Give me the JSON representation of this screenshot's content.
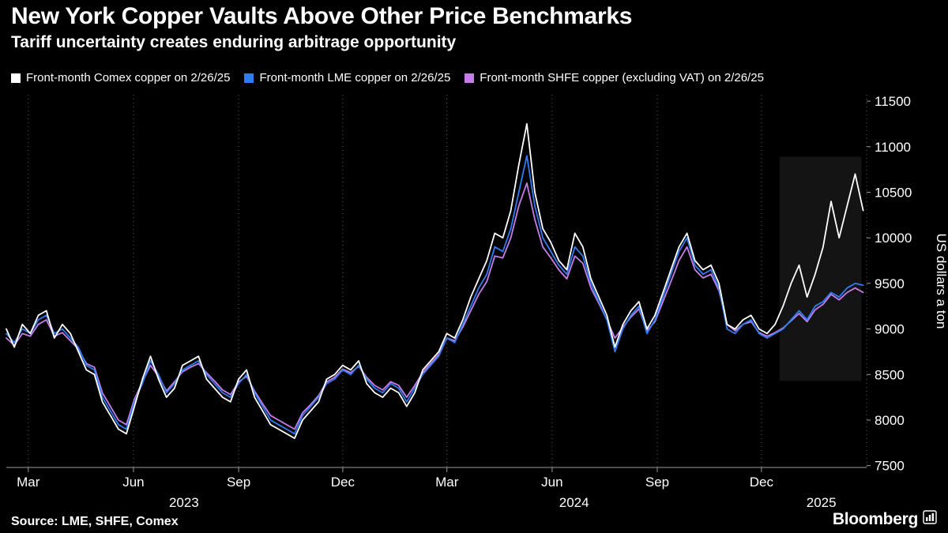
{
  "chart_data": {
    "type": "line",
    "title": "New York Copper Vaults Above Other Price Benchmarks",
    "subtitle": "Tariff uncertainty creates enduring arbitrage opportunity",
    "ylabel": "US dollars a ton",
    "source": "Source: LME, SHFE, Comex",
    "brand": "Bloomberg",
    "x_unit": "months since chart start (Feb 2023)",
    "x_domain": [
      0,
      24.7
    ],
    "y_domain": [
      7480,
      11570
    ],
    "y_ticks": [
      7500,
      8000,
      8500,
      9000,
      9500,
      10000,
      10500,
      11000,
      11500
    ],
    "x_ticks": [
      {
        "pos": 0.63,
        "label": "Mar"
      },
      {
        "pos": 3.65,
        "label": "Jun"
      },
      {
        "pos": 6.67,
        "label": "Sep"
      },
      {
        "pos": 9.66,
        "label": "Dec"
      },
      {
        "pos": 12.65,
        "label": "Mar"
      },
      {
        "pos": 15.67,
        "label": "Jun"
      },
      {
        "pos": 18.69,
        "label": "Sep"
      },
      {
        "pos": 21.68,
        "label": "Dec"
      },
      {
        "pos": 24.7,
        "label": ""
      }
    ],
    "year_labels": [
      {
        "pos": 5.1,
        "label": "2023"
      },
      {
        "pos": 16.3,
        "label": "2024"
      },
      {
        "pos": 23.4,
        "label": "2025"
      }
    ],
    "colors": {
      "grid": "#5f5f5f",
      "axis": "#9a9a9a",
      "label": "#ffffff"
    },
    "highlight_region": {
      "x0": 22.2,
      "x1": 24.55,
      "y0": 8430,
      "y1": 10890,
      "color": "rgba(255,255,255,0.08)"
    },
    "series": [
      {
        "name": "Front-month Comex copper on 2/26/25",
        "short": "comex",
        "color": "#ffffff",
        "x_start": 0,
        "x_end": 24.6,
        "values": [
          9000,
          8800,
          9050,
          8950,
          9150,
          9200,
          8900,
          9050,
          8950,
          8750,
          8550,
          8500,
          8200,
          8050,
          7900,
          7850,
          8150,
          8450,
          8700,
          8450,
          8250,
          8350,
          8600,
          8650,
          8700,
          8450,
          8350,
          8250,
          8200,
          8450,
          8550,
          8250,
          8100,
          7950,
          7900,
          7850,
          7800,
          8000,
          8100,
          8200,
          8450,
          8500,
          8600,
          8550,
          8650,
          8400,
          8300,
          8250,
          8350,
          8300,
          8150,
          8300,
          8550,
          8650,
          8750,
          8950,
          8900,
          9100,
          9350,
          9550,
          9750,
          10050,
          10000,
          10300,
          10800,
          11250,
          10500,
          10100,
          9950,
          9750,
          9650,
          10050,
          9900,
          9550,
          9350,
          9150,
          8800,
          9050,
          9200,
          9300,
          9000,
          9150,
          9400,
          9650,
          9900,
          10050,
          9750,
          9650,
          9700,
          9500,
          9050,
          9000,
          9100,
          9150,
          9000,
          8950,
          9050,
          9250,
          9500,
          9700,
          9350,
          9600,
          9900,
          10400,
          10000,
          10350,
          10700,
          10300
        ]
      },
      {
        "name": "Front-month LME copper on 2/26/25",
        "short": "lme",
        "color": "#2d7df7",
        "x_start": 0,
        "x_end": 24.6,
        "values": [
          8950,
          8850,
          9000,
          8950,
          9100,
          9150,
          8950,
          9000,
          8900,
          8800,
          8600,
          8550,
          8250,
          8100,
          7950,
          7900,
          8200,
          8400,
          8650,
          8500,
          8300,
          8400,
          8550,
          8600,
          8650,
          8500,
          8400,
          8300,
          8250,
          8400,
          8500,
          8300,
          8150,
          8000,
          7950,
          7900,
          7850,
          8050,
          8150,
          8250,
          8400,
          8450,
          8550,
          8500,
          8600,
          8450,
          8350,
          8300,
          8400,
          8350,
          8200,
          8350,
          8500,
          8600,
          8700,
          8900,
          8850,
          9050,
          9250,
          9450,
          9600,
          9900,
          9850,
          10100,
          10500,
          10900,
          10350,
          10000,
          9850,
          9700,
          9600,
          9900,
          9800,
          9500,
          9300,
          9100,
          8750,
          9000,
          9150,
          9250,
          8950,
          9100,
          9350,
          9600,
          9850,
          10000,
          9700,
          9600,
          9650,
          9450,
          9000,
          8950,
          9050,
          9100,
          8950,
          8900,
          8950,
          9000,
          9100,
          9200,
          9100,
          9250,
          9300,
          9400,
          9350,
          9450,
          9500,
          9480
        ]
      },
      {
        "name": "Front-month SHFE copper (excluding VAT) on 2/26/25",
        "short": "shfe",
        "color": "#c77ceb",
        "x_start": 0,
        "x_end": 24.6,
        "values": [
          8900,
          8820,
          8950,
          8920,
          9050,
          9100,
          8920,
          8960,
          8870,
          8780,
          8620,
          8580,
          8300,
          8150,
          8000,
          7950,
          8230,
          8420,
          8600,
          8480,
          8320,
          8420,
          8530,
          8580,
          8620,
          8520,
          8430,
          8330,
          8280,
          8420,
          8480,
          8320,
          8180,
          8050,
          8000,
          7950,
          7900,
          8080,
          8170,
          8270,
          8420,
          8470,
          8560,
          8520,
          8590,
          8470,
          8380,
          8330,
          8420,
          8380,
          8250,
          8380,
          8520,
          8620,
          8720,
          8900,
          8870,
          9020,
          9200,
          9380,
          9520,
          9800,
          9780,
          10000,
          10350,
          10600,
          10200,
          9900,
          9780,
          9650,
          9550,
          9800,
          9720,
          9450,
          9280,
          9100,
          8900,
          9020,
          9130,
          9220,
          8980,
          9080,
          9300,
          9520,
          9750,
          9900,
          9650,
          9560,
          9600,
          9420,
          9050,
          8980,
          9050,
          9080,
          8960,
          8920,
          8960,
          9010,
          9090,
          9170,
          9080,
          9210,
          9270,
          9380,
          9320,
          9400,
          9450,
          9400
        ]
      }
    ]
  }
}
